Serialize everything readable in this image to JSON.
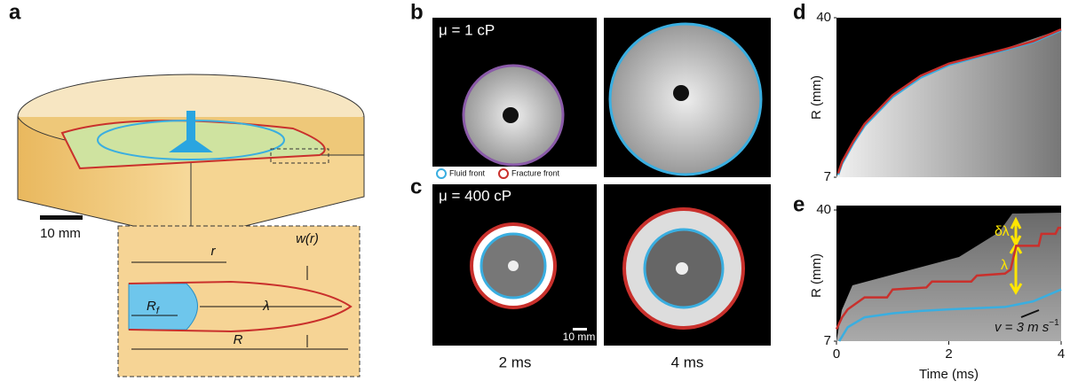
{
  "figure": {
    "panel_a": {
      "label": "a",
      "scale_bar": "10 mm",
      "r": "r",
      "w": "w(r)",
      "rf_main": "R",
      "rf_sub": "f",
      "lambda": "λ",
      "R": "R"
    },
    "panel_b": {
      "label": "b",
      "viscosity": "μ = 1 cP"
    },
    "panel_c": {
      "label": "c",
      "viscosity": "μ = 400 cP",
      "scale_bar": "10 mm"
    },
    "times": [
      "2 ms",
      "4 ms"
    ]
  },
  "chart_data": [
    {
      "type": "line",
      "label": "d",
      "ylabel": "R (mm)",
      "xlim": [
        0,
        4
      ],
      "ylim": [
        7,
        40
      ],
      "yticks": [
        7,
        40
      ],
      "series": [
        {
          "name": "Fluid front",
          "color": "#3aaee0",
          "x": [
            0.03,
            0.1,
            0.3,
            0.5,
            1,
            1.5,
            2,
            2.5,
            3,
            3.5,
            4
          ],
          "values": [
            7.5,
            9.8,
            14,
            17.6,
            23.6,
            27.6,
            30.2,
            31.8,
            33.3,
            34.9,
            37.4
          ]
        },
        {
          "name": "Fracture front",
          "color": "#c9302c",
          "x": [
            0.03,
            0.1,
            0.3,
            0.5,
            1,
            1.5,
            2,
            2.5,
            3,
            3.5,
            4
          ],
          "values": [
            7.8,
            10.2,
            14.4,
            18,
            24,
            28,
            30.5,
            32,
            33.5,
            35.1,
            37.6
          ]
        }
      ]
    },
    {
      "type": "line",
      "label": "e",
      "ylabel": "R (mm)",
      "xlabel": "Time (ms)",
      "xlim": [
        0,
        4
      ],
      "ylim": [
        7,
        40
      ],
      "yticks": [
        7,
        40
      ],
      "xticks": [
        0,
        2,
        4
      ],
      "annotations": {
        "dlambda": "δλ",
        "lambda": "λ",
        "v_main": "v = 3 m s",
        "v_sup": "−1"
      },
      "series": [
        {
          "color": "#3aaee0",
          "x": [
            0.05,
            0.2,
            0.5,
            1,
            1.5,
            2,
            2.5,
            3,
            3.5,
            4
          ],
          "values": [
            7,
            10.5,
            13,
            14,
            14.6,
            15,
            15.3,
            15.6,
            17,
            20
          ]
        },
        {
          "color": "#c9302c",
          "x": [
            0,
            0.05,
            0.1,
            0.2,
            0.3,
            0.5,
            0.9,
            1.0,
            1.6,
            1.7,
            2.4,
            2.5,
            3.0,
            3.1,
            3.2,
            3.6,
            3.65,
            3.9,
            3.95,
            4
          ],
          "values": [
            10,
            11.5,
            13,
            15,
            16,
            18,
            18,
            20,
            20.5,
            22,
            22,
            23.5,
            24,
            25,
            31,
            31,
            34,
            34,
            35.5,
            35.5
          ]
        }
      ]
    }
  ]
}
